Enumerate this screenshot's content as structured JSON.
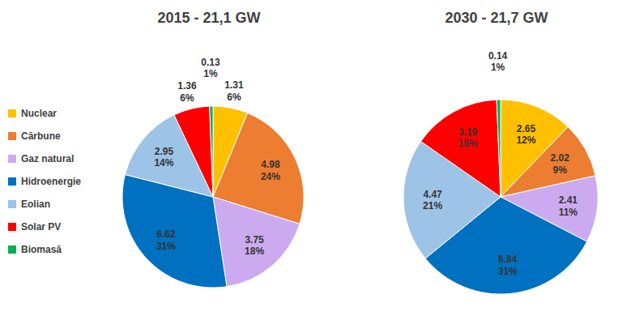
{
  "chart_data": [
    {
      "type": "pie",
      "title": "2015 - 21,1 GW",
      "categories": [
        "Nuclear",
        "Cărbune",
        "Gaz natural",
        "Hidroenergie",
        "Eolian",
        "Solar PV",
        "Biomasă"
      ],
      "values": [
        1.31,
        4.98,
        3.75,
        6.62,
        2.95,
        1.36,
        0.13
      ],
      "share_labels": [
        "6%",
        "24%",
        "18%",
        "31%",
        "14%",
        "6%",
        "1%"
      ],
      "colors": [
        "#ffc000",
        "#ed7d31",
        "#ccaaf0",
        "#0070c0",
        "#9dc3e6",
        "#ff0000",
        "#00b050"
      ],
      "data_labels": true,
      "legend": "left"
    },
    {
      "type": "pie",
      "title": "2030 - 21,7 GW",
      "categories": [
        "Nuclear",
        "Cărbune",
        "Gaz natural",
        "Hidroenergie",
        "Eolian",
        "Solar PV",
        "Biomasă"
      ],
      "values": [
        2.65,
        2.02,
        2.41,
        6.84,
        4.47,
        3.19,
        0.14
      ],
      "share_labels": [
        "12%",
        "9%",
        "11%",
        "31%",
        "21%",
        "15%",
        "1%"
      ],
      "colors": [
        "#ffc000",
        "#ed7d31",
        "#ccaaf0",
        "#0070c0",
        "#9dc3e6",
        "#ff0000",
        "#00b050"
      ],
      "data_labels": true
    }
  ]
}
